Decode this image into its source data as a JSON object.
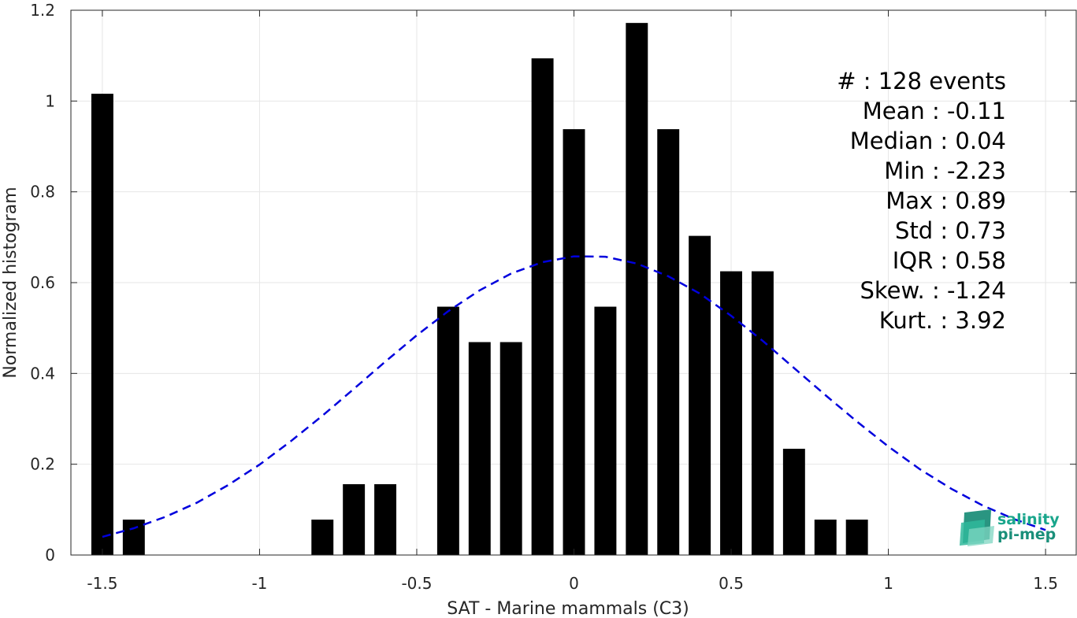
{
  "chart_data": {
    "type": "bar",
    "xlabel": "SAT - Marine mammals (C3)",
    "ylabel": "Normalized histogram",
    "xlim": [
      -1.6,
      1.6
    ],
    "ylim": [
      0,
      1.2
    ],
    "x_ticks": [
      -1.5,
      -1,
      -0.5,
      0,
      0.5,
      1,
      1.5
    ],
    "x_tick_labels": [
      "-1.5",
      "-1",
      "-0.5",
      "0",
      "0.5",
      "1",
      "1.5"
    ],
    "y_ticks": [
      0,
      0.2,
      0.4,
      0.6,
      0.8,
      1,
      1.2
    ],
    "y_tick_labels": [
      "0",
      "0.2",
      "0.4",
      "0.6",
      "0.8",
      "1",
      "1.2"
    ],
    "grid": true,
    "bar_width": 0.07,
    "bars": {
      "x": [
        -1.5,
        -1.4,
        -0.8,
        -0.7,
        -0.6,
        -0.4,
        -0.3,
        -0.2,
        -0.1,
        0.0,
        0.1,
        0.2,
        0.3,
        0.4,
        0.5,
        0.6,
        0.7,
        0.8,
        0.9
      ],
      "values": [
        1.016,
        0.078,
        0.078,
        0.156,
        0.156,
        0.547,
        0.469,
        0.469,
        1.094,
        0.938,
        0.547,
        1.172,
        0.938,
        0.703,
        0.625,
        0.625,
        0.234,
        0.078,
        0.078
      ],
      "color": "#000000"
    },
    "fit_curve": {
      "style": "dashed",
      "color": "#0000dd",
      "x": [
        -1.5,
        -1.4,
        -1.3,
        -1.2,
        -1.1,
        -1.0,
        -0.9,
        -0.8,
        -0.7,
        -0.6,
        -0.5,
        -0.4,
        -0.3,
        -0.2,
        -0.1,
        0.0,
        0.1,
        0.2,
        0.3,
        0.4,
        0.5,
        0.6,
        0.7,
        0.8,
        0.9,
        1.0,
        1.1,
        1.2,
        1.3,
        1.4,
        1.5
      ],
      "y": [
        0.04,
        0.059,
        0.084,
        0.115,
        0.154,
        0.199,
        0.251,
        0.307,
        0.366,
        0.426,
        0.484,
        0.537,
        0.583,
        0.62,
        0.645,
        0.658,
        0.657,
        0.642,
        0.614,
        0.576,
        0.527,
        0.472,
        0.412,
        0.352,
        0.294,
        0.239,
        0.189,
        0.146,
        0.109,
        0.079,
        0.055
      ]
    },
    "stats": [
      {
        "label": "#  : 128 events"
      },
      {
        "label": "Mean : -0.11"
      },
      {
        "label": "Median : 0.04"
      },
      {
        "label": "Min : -2.23"
      },
      {
        "label": "Max : 0.89"
      },
      {
        "label": "Std : 0.73"
      },
      {
        "label": "IQR : 0.58"
      },
      {
        "label": "Skew. : -1.24"
      },
      {
        "label": "Kurt. : 3.92"
      }
    ]
  },
  "logo": {
    "line1": "salinity",
    "line2": "pi-mep",
    "color": "#1aa68c"
  }
}
